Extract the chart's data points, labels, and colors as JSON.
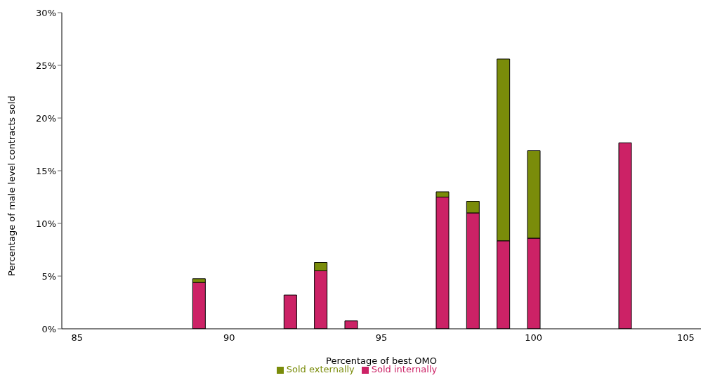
{
  "chart_data": {
    "type": "bar",
    "stacked": true,
    "xlabel": "Percentage of best OMO",
    "ylabel": "Percentage of male level contracts sold",
    "categories": [
      "85",
      null,
      null,
      null,
      null,
      "90",
      null,
      null,
      null,
      null,
      "95",
      null,
      null,
      null,
      null,
      "100",
      null,
      null,
      null,
      null,
      "105"
    ],
    "series": [
      {
        "name": "Sold internally",
        "color": "#cc2266",
        "values": [
          null,
          null,
          null,
          null,
          4.4,
          null,
          null,
          3.2,
          5.5,
          0.75,
          null,
          null,
          12.5,
          11.0,
          8.35,
          8.6,
          null,
          null,
          17.65,
          null,
          null
        ]
      },
      {
        "name": "Sold externally",
        "color": "#7a8c0a",
        "values": [
          null,
          null,
          null,
          null,
          0.35,
          null,
          null,
          null,
          0.8,
          null,
          null,
          null,
          0.5,
          1.1,
          17.25,
          8.3,
          null,
          null,
          null,
          null,
          null
        ]
      }
    ],
    "ylim": [
      0,
      30
    ],
    "yticks": [
      {
        "value": 0,
        "label": "0%"
      },
      {
        "value": 5,
        "label": "5%"
      },
      {
        "value": 10,
        "label": "10%"
      },
      {
        "value": 15,
        "label": "15%"
      },
      {
        "value": 20,
        "label": "20%"
      },
      {
        "value": 25,
        "label": "25%"
      },
      {
        "value": 30,
        "label": "30%"
      }
    ],
    "legend": "bottom"
  }
}
